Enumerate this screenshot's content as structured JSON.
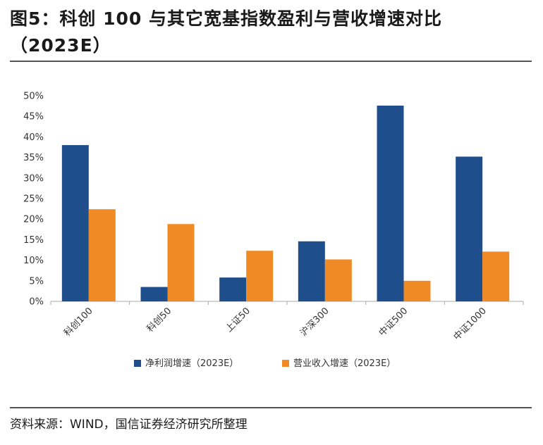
{
  "title": {
    "line1": "图5：科创 100 与其它宽基指数盈利与营收增速对比",
    "line2": "（2023E）"
  },
  "source": "资料来源：WIND，国信证券经济研究所整理",
  "colors": {
    "series1": "#1F4E8C",
    "series2": "#F08A24",
    "axis": "#AAAAAA",
    "grid": "#DDDDDD"
  },
  "chart_data": {
    "type": "bar",
    "title": "科创 100 与其它宽基指数盈利与营收增速对比（2023E）",
    "xlabel": "",
    "ylabel": "",
    "categories": [
      "科创100",
      "科创50",
      "上证50",
      "沪深300",
      "中证500",
      "中证1000"
    ],
    "series": [
      {
        "name": "净利润增速（2023E）",
        "values": [
          38.0,
          3.5,
          5.8,
          14.6,
          47.6,
          35.2
        ]
      },
      {
        "name": "营业收入增速（2023E）",
        "values": [
          22.4,
          18.8,
          12.3,
          10.2,
          5.0,
          12.1
        ]
      }
    ],
    "ylim": [
      0,
      50
    ],
    "yticks": [
      "0%",
      "5%",
      "10%",
      "15%",
      "20%",
      "25%",
      "30%",
      "35%",
      "40%",
      "45%",
      "50%"
    ],
    "grid": false,
    "legend": "bottom"
  }
}
